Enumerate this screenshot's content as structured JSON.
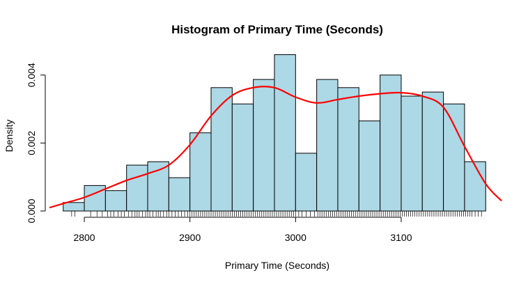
{
  "chart_data": {
    "type": "bar",
    "title": "Histogram of Primary Time (Seconds)",
    "xlabel": "Primary Time (Seconds)",
    "ylabel": "Density",
    "xlim": [
      2767,
      3195
    ],
    "ylim": [
      0,
      0.00463
    ],
    "x_ticks": [
      2800,
      2900,
      3000,
      3100
    ],
    "y_ticks": [
      0.0,
      0.002,
      0.004
    ],
    "x_tick_labels": [
      "2800",
      "2900",
      "3000",
      "3100"
    ],
    "y_tick_labels": [
      "0.000",
      "0.002",
      "0.004"
    ],
    "bar_color": "#ADD8E6",
    "bar_outline_color": "#000000",
    "grid": false,
    "legend": false,
    "bins": [
      {
        "x0": 2780,
        "x1": 2800,
        "density": 0.00025
      },
      {
        "x0": 2800,
        "x1": 2820,
        "density": 0.00075
      },
      {
        "x0": 2820,
        "x1": 2840,
        "density": 0.0006
      },
      {
        "x0": 2840,
        "x1": 2860,
        "density": 0.00135
      },
      {
        "x0": 2860,
        "x1": 2880,
        "density": 0.00145
      },
      {
        "x0": 2880,
        "x1": 2900,
        "density": 0.00098
      },
      {
        "x0": 2900,
        "x1": 2920,
        "density": 0.0023
      },
      {
        "x0": 2920,
        "x1": 2940,
        "density": 0.00363
      },
      {
        "x0": 2940,
        "x1": 2960,
        "density": 0.00315
      },
      {
        "x0": 2960,
        "x1": 2980,
        "density": 0.00387
      },
      {
        "x0": 2980,
        "x1": 3000,
        "density": 0.0046
      },
      {
        "x0": 3000,
        "x1": 3020,
        "density": 0.0017
      },
      {
        "x0": 3020,
        "x1": 3040,
        "density": 0.00387
      },
      {
        "x0": 3040,
        "x1": 3060,
        "density": 0.00363
      },
      {
        "x0": 3060,
        "x1": 3080,
        "density": 0.00265
      },
      {
        "x0": 3080,
        "x1": 3100,
        "density": 0.004
      },
      {
        "x0": 3100,
        "x1": 3120,
        "density": 0.00338
      },
      {
        "x0": 3120,
        "x1": 3140,
        "density": 0.0035
      },
      {
        "x0": 3140,
        "x1": 3160,
        "density": 0.00315
      },
      {
        "x0": 3160,
        "x1": 3180,
        "density": 0.00145
      }
    ],
    "density_curve": {
      "color": "#FF0000",
      "x": [
        2767,
        2780,
        2800,
        2820,
        2840,
        2860,
        2880,
        2900,
        2920,
        2940,
        2960,
        2980,
        3000,
        3020,
        3040,
        3060,
        3080,
        3100,
        3120,
        3140,
        3160,
        3180,
        3195
      ],
      "y": [
        0.0001,
        0.00022,
        0.0004,
        0.00065,
        0.0009,
        0.0011,
        0.00135,
        0.00195,
        0.0028,
        0.0034,
        0.00363,
        0.00363,
        0.00335,
        0.00318,
        0.00328,
        0.00338,
        0.00345,
        0.00348,
        0.00338,
        0.00305,
        0.0019,
        0.0008,
        0.0003
      ]
    },
    "rug": {
      "color": "#000000",
      "x": [
        2788,
        2791,
        2806,
        2812,
        2817,
        2822,
        2825,
        2828,
        2832,
        2835,
        2838,
        2842,
        2845,
        2848,
        2850,
        2852,
        2855,
        2858,
        2860,
        2862,
        2865,
        2868,
        2870,
        2872,
        2875,
        2878,
        2880,
        2883,
        2886,
        2889,
        2892,
        2895,
        2898,
        2900,
        2902,
        2904,
        2906,
        2908,
        2910,
        2912,
        2914,
        2916,
        2918,
        2920,
        2922,
        2924,
        2926,
        2928,
        2930,
        2932,
        2934,
        2936,
        2938,
        2940,
        2942,
        2944,
        2946,
        2948,
        2950,
        2952,
        2954,
        2956,
        2958,
        2960,
        2962,
        2964,
        2966,
        2968,
        2970,
        2972,
        2974,
        2976,
        2978,
        2980,
        2982,
        2984,
        2986,
        2988,
        2990,
        2992,
        2994,
        2996,
        2998,
        3000,
        3003,
        3006,
        3010,
        3014,
        3018,
        3021,
        3023,
        3025,
        3027,
        3029,
        3031,
        3033,
        3035,
        3037,
        3039,
        3041,
        3043,
        3045,
        3047,
        3049,
        3051,
        3053,
        3055,
        3057,
        3059,
        3061,
        3063,
        3065,
        3067,
        3069,
        3071,
        3073,
        3075,
        3077,
        3079,
        3081,
        3083,
        3085,
        3087,
        3089,
        3091,
        3093,
        3095,
        3097,
        3099,
        3101,
        3103,
        3105,
        3107,
        3109,
        3111,
        3113,
        3115,
        3117,
        3119,
        3121,
        3123,
        3125,
        3127,
        3129,
        3131,
        3133,
        3135,
        3137,
        3139,
        3141,
        3143,
        3145,
        3147,
        3149,
        3151,
        3153,
        3155,
        3157,
        3159,
        3161,
        3163,
        3165,
        3167,
        3170,
        3173,
        3176
      ]
    }
  }
}
